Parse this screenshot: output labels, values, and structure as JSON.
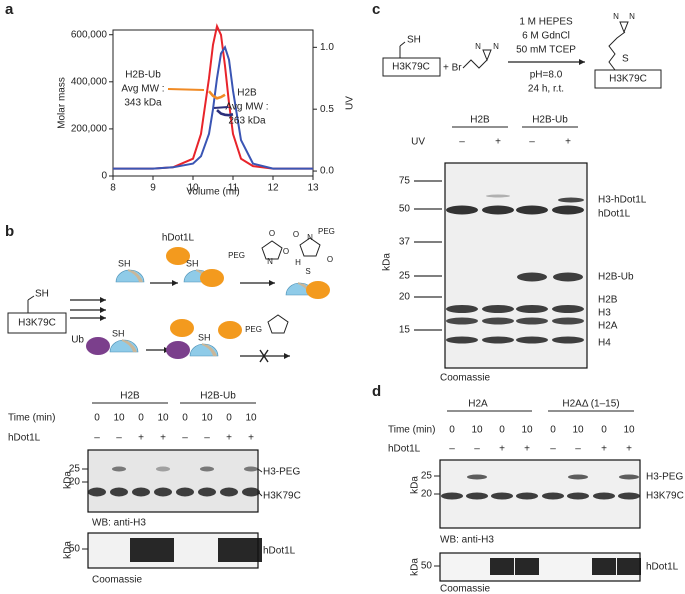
{
  "panel_labels": [
    "a",
    "b",
    "c",
    "d"
  ],
  "chart_data": {
    "type": "line",
    "x_label": "Volume (ml)",
    "y_label": "Molar mass",
    "y2_label": "UV",
    "x": [
      8,
      9,
      9.5,
      10,
      10.2,
      10.4,
      10.5,
      10.6,
      10.7,
      10.8,
      10.9,
      11,
      11.2,
      11.5,
      12,
      13
    ],
    "series": [
      {
        "color": "#e8242b",
        "axis": "y2",
        "values": [
          0.02,
          0.02,
          0.03,
          0.1,
          0.3,
          0.75,
          1.02,
          1.17,
          1.1,
          0.85,
          0.55,
          0.3,
          0.1,
          0.04,
          0.02,
          0.02
        ]
      },
      {
        "color": "#3a55b4",
        "axis": "y2",
        "values": [
          0.02,
          0.02,
          0.03,
          0.06,
          0.12,
          0.3,
          0.5,
          0.75,
          0.95,
          1.0,
          0.9,
          0.65,
          0.25,
          0.06,
          0.02,
          0.02
        ]
      },
      {
        "color": "#f08a24",
        "values": [
          null,
          null,
          null,
          null,
          null,
          360000,
          340000,
          330000,
          335000,
          345000,
          null,
          null,
          null,
          null,
          null,
          null
        ]
      },
      {
        "color": "#2b2f7a",
        "values": [
          null,
          null,
          null,
          null,
          null,
          null,
          null,
          280000,
          265000,
          260000,
          258000,
          262000,
          null,
          null,
          null,
          null
        ]
      }
    ],
    "xlim": [
      8,
      13
    ],
    "xticks": [
      8,
      9,
      10,
      11,
      12,
      13
    ],
    "ylim": [
      0,
      620000
    ],
    "yticks": [
      0,
      {
        "value": 200000,
        "label": "200,000"
      },
      {
        "value": 400000,
        "label": "400,000"
      },
      {
        "value": 600000,
        "label": "600,000"
      }
    ],
    "y2lim": [
      -0.04,
      1.14
    ],
    "y2ticks": [
      {
        "value": 0,
        "label": "0.0"
      },
      {
        "value": 0.5,
        "label": "0.5"
      },
      {
        "value": 1,
        "label": "1.0"
      }
    ],
    "annotations": [
      "H2B-Ub",
      "Avg MW :",
      "343 kDa",
      "H2B",
      "Avg MW :",
      "263 kDa"
    ]
  },
  "panel_b": {
    "schematic": {
      "enzyme": "hDot1L",
      "thiol": "SH",
      "peptide": "H3K79C",
      "ubiquitin": "Ub",
      "peg": "PEG",
      "atoms": [
        "O",
        "N",
        "O"
      ],
      "product_atoms": [
        "O",
        "N",
        "O",
        "H",
        "S"
      ]
    },
    "groups": [
      "H2B",
      "H2B-Ub"
    ],
    "time_label": "Time (min)",
    "times": [
      "0",
      "10",
      "0",
      "10",
      "0",
      "10",
      "0",
      "10"
    ],
    "enzyme_label": "hDot1L",
    "enzyme_added": [
      "–",
      "–",
      "+",
      "+",
      "–",
      "–",
      "+",
      "+"
    ],
    "kda": "kDa",
    "markers": [
      "25",
      "20"
    ],
    "bands": [
      "H3-PEG",
      "H3K79C"
    ],
    "blot": "WB: anti-H3",
    "coomassie_markers": [
      "50"
    ],
    "coomassie_band": "hDot1L",
    "stain": "Coomassie"
  },
  "panel_c": {
    "reaction": {
      "thiol": "SH",
      "peptide": "H3K79C",
      "reagent": "+ Br",
      "nitrogen": "N",
      "sulfur": "S",
      "conditions": [
        "1 M HEPES",
        "6 M GdnCl",
        "50 mM TCEP"
      ],
      "conditions_below": [
        "pH=8.0",
        "24 h, r.t."
      ]
    },
    "groups": [
      "H2B",
      "H2B-Ub"
    ],
    "uv_label": "UV",
    "uv": [
      "–",
      "+",
      "–",
      "+"
    ],
    "kda": "kDa",
    "markers": [
      "75",
      "50",
      "37",
      "25",
      "20",
      "15"
    ],
    "bands": [
      "H3-hDot1L",
      "hDot1L",
      "H2B-Ub",
      "H2B",
      "H3",
      "H2A",
      "H4"
    ],
    "stain": "Coomassie"
  },
  "panel_d": {
    "groups": [
      "H2A",
      "H2AΔ (1–15)"
    ],
    "time_label": "Time (min)",
    "times": [
      "0",
      "10",
      "0",
      "10",
      "0",
      "10",
      "0",
      "10"
    ],
    "enzyme_label": "hDot1L",
    "enzyme_added": [
      "–",
      "–",
      "+",
      "+",
      "–",
      "–",
      "+",
      "+"
    ],
    "kda": "kDa",
    "markers": [
      "25",
      "20"
    ],
    "bands": [
      "H3-PEG",
      "H3K79C"
    ],
    "blot": "WB: anti-H3",
    "coomassie_markers": [
      "50"
    ],
    "coomassie_band": "hDot1L",
    "stain": "Coomassie"
  }
}
